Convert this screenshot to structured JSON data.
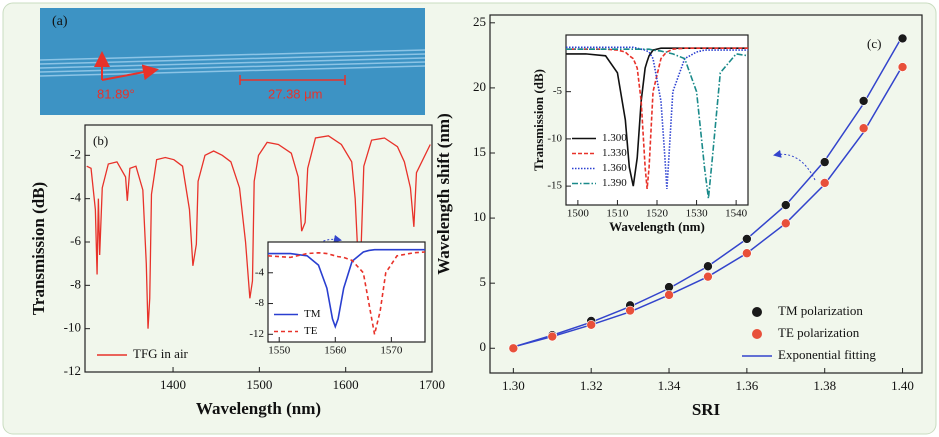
{
  "panel_a": {
    "label": "(a)",
    "angle_label": "81.89°",
    "scale_label": "27.38 μm"
  },
  "chart_data": [
    {
      "type": "line",
      "panel_label": "(b)",
      "x_label": "Wavelength (nm)",
      "y_label": "Transmission (dB)",
      "xlim": [
        1298,
        1700
      ],
      "ylim": [
        -12,
        -0.6
      ],
      "xticks": [
        1400,
        1500,
        1600,
        1700
      ],
      "yticks": [
        -2,
        -4,
        -6,
        -8,
        -10,
        -12
      ],
      "legend": "lower left",
      "x": [
        1300,
        1305,
        1310,
        1312,
        1313.5,
        1315,
        1318,
        1325,
        1335,
        1345,
        1347,
        1350,
        1357,
        1365,
        1369,
        1371,
        1373,
        1375,
        1381,
        1391,
        1401,
        1411,
        1419,
        1423,
        1427,
        1429,
        1437,
        1447,
        1457,
        1467,
        1477,
        1484,
        1489,
        1492,
        1494,
        1499,
        1509,
        1522,
        1537,
        1545,
        1549,
        1553,
        1556,
        1565,
        1580,
        1595,
        1607,
        1611,
        1614,
        1618,
        1621,
        1630,
        1645,
        1660,
        1668,
        1675,
        1679,
        1682,
        1698
      ],
      "series": [
        {
          "name": "TFG in air",
          "color": "#e8322a",
          "dash": "none",
          "values": [
            -2.5,
            -2.6,
            -4.5,
            -7.5,
            -4,
            -6.6,
            -3.5,
            -2.4,
            -2.3,
            -3,
            -4.1,
            -2.6,
            -2.5,
            -3.6,
            -7,
            -10,
            -8.6,
            -3.8,
            -2.2,
            -2.1,
            -2.2,
            -2.5,
            -4.5,
            -7.1,
            -6.1,
            -3.2,
            -2,
            -1.8,
            -2,
            -2.3,
            -3.5,
            -6,
            -8.6,
            -7.8,
            -3.2,
            -2,
            -1.4,
            -1.5,
            -1.9,
            -3,
            -5.5,
            -5.1,
            -2.6,
            -1.2,
            -1.1,
            -1.5,
            -2.3,
            -4,
            -6.5,
            -6.1,
            -2.5,
            -1.3,
            -1.2,
            -1.6,
            -2.3,
            -3.5,
            -5.3,
            -2.8,
            -1.5
          ]
        }
      ]
    },
    {
      "type": "line",
      "xlim": [
        1548,
        1576
      ],
      "ylim": [
        -13,
        0
      ],
      "xticks": [
        1550,
        1560,
        1570
      ],
      "yticks": [
        -4,
        -8,
        -12
      ],
      "legend": "lower left",
      "x": [
        1548,
        1552,
        1555,
        1557,
        1558.5,
        1559.5,
        1560,
        1560.5,
        1561.5,
        1563,
        1565,
        1566,
        1567,
        1568,
        1569,
        1571,
        1574,
        1576
      ],
      "series": [
        {
          "name": "TM",
          "color": "#2a3fd0",
          "dash": "none",
          "values": [
            -1.5,
            -1.5,
            -1.8,
            -3,
            -6,
            -10,
            -11,
            -10,
            -6,
            -2.5,
            -1.3,
            -1.1,
            -1,
            -1,
            -1,
            -1,
            -1,
            -1
          ]
        },
        {
          "name": "TE",
          "color": "#e8322a",
          "dash": "4 3",
          "values": [
            -1.8,
            -2,
            -1.5,
            -1.4,
            -1.5,
            -1.7,
            -1.8,
            -1.9,
            -2,
            -2.4,
            -4,
            -8,
            -12,
            -9,
            -4,
            -1.8,
            -1.4,
            -1.3
          ]
        }
      ]
    },
    {
      "type": "scatter",
      "panel_label": "(c)",
      "x_label": "SRI",
      "y_label": "Wavelength shift (nm)",
      "xlim": [
        1.294,
        1.405
      ],
      "ylim": [
        -1.9,
        25.6
      ],
      "xticks": [
        {
          "value": 1.3,
          "label": "1.30"
        },
        {
          "value": 1.32,
          "label": "1.32"
        },
        {
          "value": 1.34,
          "label": "1.34"
        },
        {
          "value": 1.36,
          "label": "1.36"
        },
        {
          "value": 1.38,
          "label": "1.38"
        },
        {
          "value": 1.4,
          "label": "1.40"
        }
      ],
      "yticks": [
        0,
        5,
        10,
        15,
        20,
        25
      ],
      "legend": "lower right",
      "x": [
        1.3,
        1.31,
        1.32,
        1.33,
        1.34,
        1.35,
        1.36,
        1.37,
        1.38,
        1.39,
        1.4
      ],
      "series": [
        {
          "name": "TM polarization",
          "color": "#1a1a1a",
          "values": [
            0,
            1,
            2.1,
            3.3,
            4.7,
            6.3,
            8.4,
            11,
            14.3,
            19,
            23.8
          ]
        },
        {
          "name": "TE  polarization",
          "color": "#e8503a",
          "values": [
            0,
            0.9,
            1.8,
            2.9,
            4.1,
            5.5,
            7.3,
            9.6,
            12.7,
            16.9,
            21.6
          ]
        }
      ],
      "fit": {
        "name": "Exponential fitting",
        "color": "#3344cc",
        "curves": [
          [
            0.1,
            1,
            2,
            3.2,
            4.6,
            6.3,
            8.4,
            11,
            14.4,
            18.8,
            24
          ],
          [
            0.1,
            0.9,
            1.8,
            2.8,
            4.1,
            5.5,
            7.3,
            9.6,
            12.6,
            16.6,
            21.7
          ]
        ]
      }
    },
    {
      "type": "line",
      "x_label": "Wavelength (nm)",
      "y_label": "Transmission (dB)",
      "xlim": [
        1497,
        1543
      ],
      "ylim": [
        -17,
        1
      ],
      "xticks": [
        1500,
        1510,
        1520,
        1530,
        1540
      ],
      "yticks": [
        -5,
        -10,
        -15
      ],
      "legend": "lower left",
      "x": [
        1497,
        1502,
        1507,
        1510,
        1512,
        1513,
        1514,
        1515,
        1516,
        1517,
        1517.5,
        1518,
        1519,
        1521,
        1522,
        1522.5,
        1523,
        1524,
        1527,
        1530,
        1532,
        1533,
        1534,
        1536,
        1540,
        1543
      ],
      "series": [
        {
          "name": "1.300",
          "color": "#111111",
          "dash": "none",
          "values": [
            -1,
            -1,
            -1.2,
            -3,
            -8,
            -13,
            -15,
            -12,
            -6,
            -2.5,
            -1.8,
            -1.2,
            -0.6,
            -0.4,
            -0.4,
            -0.4,
            -0.4,
            -0.4,
            -0.4,
            -0.4,
            -0.4,
            -0.4,
            -0.4,
            -0.4,
            -0.4,
            -0.4
          ]
        },
        {
          "name": "1.330",
          "color": "#e8322a",
          "dash": "4 2",
          "values": [
            -0.5,
            -0.5,
            -0.5,
            -0.6,
            -0.8,
            -1.2,
            -1.5,
            -2.5,
            -6,
            -13,
            -15.3,
            -13,
            -5,
            -1.5,
            -1,
            -0.8,
            -0.7,
            -0.5,
            -0.4,
            -0.4,
            -0.4,
            -0.4,
            -0.4,
            -0.4,
            -0.4,
            -0.4
          ]
        },
        {
          "name": "1.360",
          "color": "#2a3fd0",
          "dash": "1.5 1.5",
          "values": [
            -0.3,
            -0.3,
            -0.3,
            -0.3,
            -0.3,
            -0.3,
            -0.3,
            -0.4,
            -0.5,
            -0.6,
            -0.7,
            -0.8,
            -1.5,
            -6,
            -12,
            -15.3,
            -12,
            -5,
            -1.5,
            -0.8,
            -0.6,
            -0.6,
            -0.6,
            -0.6,
            -0.6,
            -0.6
          ]
        },
        {
          "name": "1.390",
          "color": "#1a8a8a",
          "dash": "6 2 1.5 2",
          "values": [
            -0.5,
            -0.5,
            -0.5,
            -0.5,
            -0.5,
            -0.5,
            -0.5,
            -0.5,
            -0.5,
            -0.5,
            -0.5,
            -0.5,
            -0.6,
            -0.7,
            -0.8,
            -0.8,
            -0.9,
            -1,
            -1.5,
            -5,
            -13,
            -16.3,
            -12,
            -3,
            -1,
            -1.2
          ]
        }
      ]
    }
  ]
}
